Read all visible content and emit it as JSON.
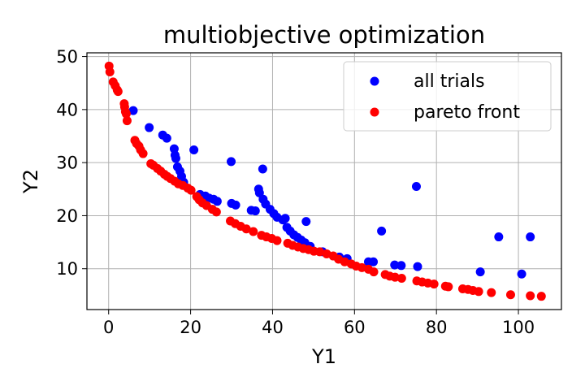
{
  "chart_data": {
    "type": "scatter",
    "title": "multiobjective optimization",
    "xlabel": "Y1",
    "ylabel": "Y2",
    "xlim": [
      -5.3,
      110.5
    ],
    "ylim": [
      2.3,
      50.7
    ],
    "xticks": [
      0,
      20,
      40,
      60,
      80,
      100
    ],
    "yticks": [
      10,
      20,
      30,
      40,
      50
    ],
    "grid": true,
    "legend_position": "top-right",
    "colors": {
      "all_trials": "#0000ff",
      "pareto_front": "#ff0000",
      "grid": "#b0b0b0"
    },
    "series": [
      {
        "name": "all trials",
        "points": [
          [
            6,
            39.8
          ],
          [
            9.9,
            36.6
          ],
          [
            13.2,
            35.2
          ],
          [
            14.2,
            34.6
          ],
          [
            16,
            32.6
          ],
          [
            16.2,
            31.4
          ],
          [
            16.4,
            30.8
          ],
          [
            16.8,
            29.2
          ],
          [
            17.4,
            28.4
          ],
          [
            17.8,
            27.4
          ],
          [
            18.3,
            26.3
          ],
          [
            20.8,
            32.4
          ],
          [
            22.3,
            24
          ],
          [
            23.6,
            23.7
          ],
          [
            24.5,
            23.3
          ],
          [
            25.6,
            23.1
          ],
          [
            26.5,
            22.7
          ],
          [
            29.9,
            30.2
          ],
          [
            30,
            22.3
          ],
          [
            31,
            22
          ],
          [
            34.8,
            21
          ],
          [
            35.8,
            20.9
          ],
          [
            36.6,
            25
          ],
          [
            36.8,
            24.3
          ],
          [
            37.6,
            28.8
          ],
          [
            37.7,
            23.1
          ],
          [
            38.3,
            22.2
          ],
          [
            39.4,
            21.2
          ],
          [
            40.3,
            20.4
          ],
          [
            41.1,
            19.7
          ],
          [
            42.5,
            19.2
          ],
          [
            43.1,
            19.5
          ],
          [
            43.5,
            17.8
          ],
          [
            44.3,
            17.1
          ],
          [
            45.2,
            16.4
          ],
          [
            46.1,
            15.9
          ],
          [
            47,
            15.4
          ],
          [
            47.9,
            14.9
          ],
          [
            48.2,
            18.9
          ],
          [
            49.2,
            14.2
          ],
          [
            52.2,
            13.2
          ],
          [
            56.3,
            12.2
          ],
          [
            58.2,
            11.9
          ],
          [
            63.4,
            11.3
          ],
          [
            64.6,
            11.3
          ],
          [
            66.6,
            17.1
          ],
          [
            69.8,
            10.7
          ],
          [
            71.4,
            10.6
          ],
          [
            75.1,
            25.5
          ],
          [
            75.4,
            10.4
          ],
          [
            90.7,
            9.4
          ],
          [
            95.2,
            16
          ],
          [
            100.8,
            9
          ],
          [
            102.9,
            16
          ]
        ]
      },
      {
        "name": "pareto front",
        "points": [
          [
            0.1,
            48.2
          ],
          [
            0.3,
            47.1
          ],
          [
            1.1,
            45.2
          ],
          [
            1.6,
            44.5
          ],
          [
            2.1,
            43.7
          ],
          [
            2.3,
            43.4
          ],
          [
            3.8,
            41.1
          ],
          [
            3.9,
            40.5
          ],
          [
            4.1,
            39.6
          ],
          [
            4.3,
            39.2
          ],
          [
            4.5,
            37.9
          ],
          [
            6.4,
            34.2
          ],
          [
            6.8,
            33.6
          ],
          [
            7.4,
            33.1
          ],
          [
            7.8,
            32.4
          ],
          [
            8.4,
            31.7
          ],
          [
            10.3,
            29.8
          ],
          [
            10.9,
            29.5
          ],
          [
            11.9,
            28.9
          ],
          [
            12.7,
            28.4
          ],
          [
            13.6,
            27.8
          ],
          [
            14.3,
            27.4
          ],
          [
            15.1,
            27
          ],
          [
            16.1,
            26.5
          ],
          [
            17,
            26
          ],
          [
            18.1,
            25.7
          ],
          [
            19.3,
            25.2
          ],
          [
            20.1,
            24.8
          ],
          [
            21.5,
            23.6
          ],
          [
            22.1,
            23
          ],
          [
            22.9,
            22.4
          ],
          [
            23.9,
            21.9
          ],
          [
            25.3,
            21.2
          ],
          [
            26.3,
            20.7
          ],
          [
            29.7,
            19
          ],
          [
            30.9,
            18.5
          ],
          [
            32.2,
            18
          ],
          [
            33.6,
            17.5
          ],
          [
            35.3,
            17
          ],
          [
            37.3,
            16.3
          ],
          [
            38.5,
            16
          ],
          [
            39.8,
            15.7
          ],
          [
            41.1,
            15.3
          ],
          [
            43.7,
            14.8
          ],
          [
            44.9,
            14.4
          ],
          [
            46.2,
            14.1
          ],
          [
            47.5,
            13.8
          ],
          [
            48.8,
            13.6
          ],
          [
            50.1,
            13.3
          ],
          [
            51.5,
            13.2
          ],
          [
            53.2,
            12.8
          ],
          [
            54.8,
            12.4
          ],
          [
            56.1,
            11.8
          ],
          [
            57.6,
            11.3
          ],
          [
            59.2,
            10.9
          ],
          [
            60.4,
            10.5
          ],
          [
            61.8,
            10.2
          ],
          [
            63.4,
            9.9
          ],
          [
            64.7,
            9.4
          ],
          [
            67.5,
            8.9
          ],
          [
            68.6,
            8.6
          ],
          [
            69.9,
            8.4
          ],
          [
            71.5,
            8.2
          ],
          [
            75.2,
            7.7
          ],
          [
            76.5,
            7.5
          ],
          [
            77.9,
            7.3
          ],
          [
            79.4,
            7.1
          ],
          [
            82.2,
            6.7
          ],
          [
            82.9,
            6.6
          ],
          [
            86.4,
            6.2
          ],
          [
            87.7,
            6.1
          ],
          [
            88.9,
            5.9
          ],
          [
            90.3,
            5.7
          ],
          [
            93.4,
            5.5
          ],
          [
            98.1,
            5.1
          ],
          [
            102.9,
            4.9
          ],
          [
            105.6,
            4.8
          ]
        ]
      }
    ]
  }
}
